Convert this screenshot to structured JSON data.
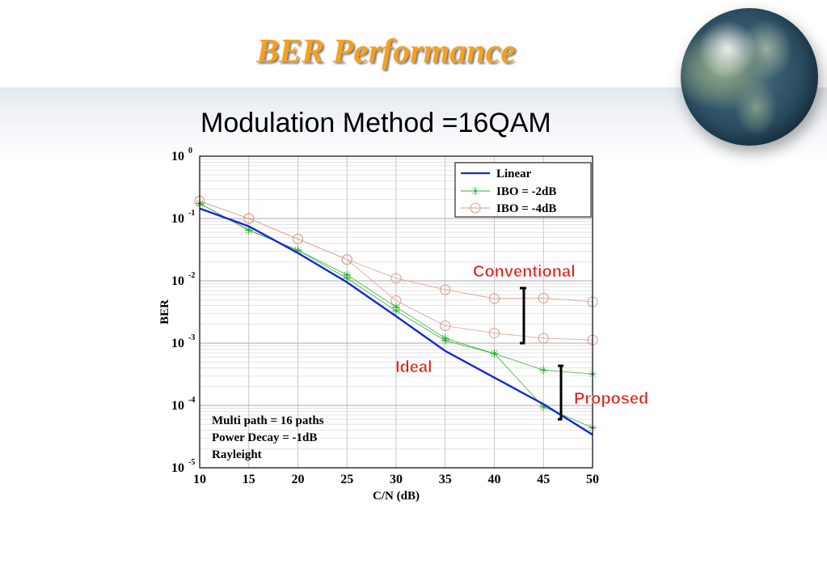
{
  "slide": {
    "title": "BER Performance",
    "subtitle": "Modulation Method =16QAM"
  },
  "chart_data": {
    "type": "line",
    "xlabel": "C/N (dB)",
    "ylabel": "BER",
    "xlim": [
      10,
      50
    ],
    "ylim_log10": [
      -5,
      0
    ],
    "yscale": "log",
    "grid": true,
    "legend_position": "top-right",
    "x_ticks": [
      "10",
      "15",
      "20",
      "25",
      "30",
      "35",
      "40",
      "45",
      "50"
    ],
    "y_ticks": [
      {
        "base": "10",
        "exp": "0",
        "value": 1
      },
      {
        "base": "10",
        "exp": "-1",
        "value": 0.1
      },
      {
        "base": "10",
        "exp": "-2",
        "value": 0.01
      },
      {
        "base": "10",
        "exp": "-3",
        "value": 0.001
      },
      {
        "base": "10",
        "exp": "-4",
        "value": 0.0001
      },
      {
        "base": "10",
        "exp": "-5",
        "value": 1e-05
      }
    ],
    "series": [
      {
        "name": "Linear",
        "color": "#1428d8",
        "marker": "none",
        "x": [
          10,
          15,
          20,
          25,
          30,
          35,
          40,
          45,
          50
        ],
        "y": [
          0.145,
          0.075,
          0.028,
          0.0095,
          0.0027,
          0.00075,
          0.00028,
          0.000105,
          3.4e-05
        ]
      },
      {
        "name": "IBO = -2dB",
        "color": "#30b030",
        "marker": "star",
        "x": [
          10,
          15,
          20,
          25,
          30,
          35,
          40,
          45,
          50
        ],
        "y": [
          0.175,
          0.065,
          0.031,
          0.011,
          0.0033,
          0.0011,
          0.00068,
          0.00037,
          0.00032
        ]
      },
      {
        "name": "IBO = -4dB",
        "color": "#d89a8a",
        "marker": "circle",
        "x": [
          10,
          15,
          20,
          25,
          30,
          35,
          40,
          45,
          50
        ],
        "y": [
          0.19,
          0.1,
          0.047,
          0.022,
          0.0048,
          0.0019,
          0.00145,
          0.0012,
          0.00112
        ]
      },
      {
        "name": "",
        "color": "#d89a8a",
        "marker": "circle",
        "x": [
          10,
          15,
          20,
          25,
          30,
          35,
          40,
          45,
          50
        ],
        "y": [
          0.19,
          0.1,
          0.047,
          0.022,
          0.011,
          0.0072,
          0.0052,
          0.0053,
          0.0046
        ]
      },
      {
        "name": "",
        "color": "#30b030",
        "marker": "star",
        "x": [
          10,
          15,
          20,
          25,
          30,
          35,
          40,
          45,
          50
        ],
        "y": [
          0.175,
          0.065,
          0.031,
          0.0125,
          0.0038,
          0.0012,
          0.00068,
          9.5e-05,
          4.4e-05
        ]
      }
    ],
    "annotations": {
      "conventional": "Conventional",
      "ideal": "Ideal",
      "proposed": "Proposed",
      "notes": [
        "Multi path = 16 paths",
        "Power Decay = -1dB",
        "Rayleight"
      ]
    }
  }
}
